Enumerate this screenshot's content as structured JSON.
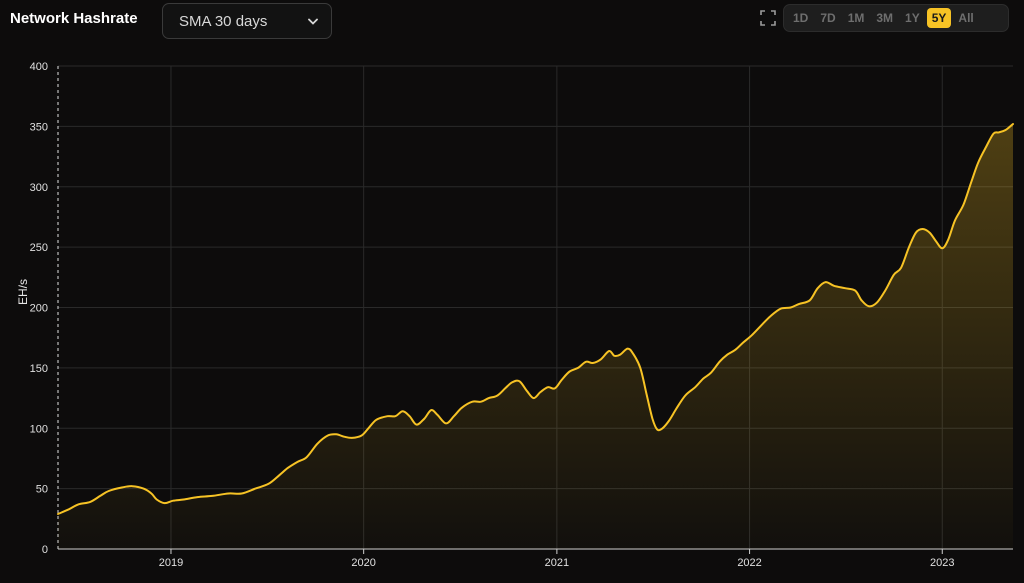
{
  "header": {
    "title": "Network Hashrate",
    "select_value": "SMA 30 days",
    "ranges": [
      "1D",
      "7D",
      "1M",
      "3M",
      "1Y",
      "5Y",
      "All"
    ],
    "active_range": "5Y"
  },
  "colors": {
    "line": "#f7c325",
    "active": "#f7c325",
    "background": "#0d0c0c",
    "grid": "#2a2a2a"
  },
  "icons": {
    "fullscreen": "fullscreen-icon",
    "dropdown": "chevron-down-icon"
  },
  "chart_data": {
    "type": "area",
    "title": "",
    "xlabel": "",
    "ylabel": "EH/s",
    "ylim": [
      0,
      400
    ],
    "yticks": [
      0,
      50,
      100,
      150,
      200,
      250,
      300,
      350,
      400
    ],
    "xlim": [
      "2018-06-01",
      "2023-05-15"
    ],
    "xticks": [
      {
        "date": "2019-01-01",
        "label": "2019"
      },
      {
        "date": "2020-01-01",
        "label": "2020"
      },
      {
        "date": "2021-01-01",
        "label": "2021"
      },
      {
        "date": "2022-01-01",
        "label": "2022"
      },
      {
        "date": "2023-01-01",
        "label": "2023"
      }
    ],
    "grid": true,
    "series": [
      {
        "points": [
          [
            "2018-06-01",
            29
          ],
          [
            "2018-06-22",
            33
          ],
          [
            "2018-07-10",
            37
          ],
          [
            "2018-08-01",
            39
          ],
          [
            "2018-08-20",
            44
          ],
          [
            "2018-09-05",
            48
          ],
          [
            "2018-10-01",
            51
          ],
          [
            "2018-10-20",
            52
          ],
          [
            "2018-11-10",
            50
          ],
          [
            "2018-11-25",
            46
          ],
          [
            "2018-12-05",
            41
          ],
          [
            "2018-12-20",
            38
          ],
          [
            "2019-01-05",
            40
          ],
          [
            "2019-01-25",
            41
          ],
          [
            "2019-02-20",
            43
          ],
          [
            "2019-03-20",
            44
          ],
          [
            "2019-04-20",
            46
          ],
          [
            "2019-05-15",
            46
          ],
          [
            "2019-06-10",
            50
          ],
          [
            "2019-07-05",
            54
          ],
          [
            "2019-07-25",
            61
          ],
          [
            "2019-08-10",
            67
          ],
          [
            "2019-08-28",
            72
          ],
          [
            "2019-09-15",
            76
          ],
          [
            "2019-10-05",
            87
          ],
          [
            "2019-10-25",
            94
          ],
          [
            "2019-11-10",
            95
          ],
          [
            "2019-11-25",
            93
          ],
          [
            "2019-12-10",
            92
          ],
          [
            "2019-12-28",
            94
          ],
          [
            "2020-01-10",
            100
          ],
          [
            "2020-01-25",
            107
          ],
          [
            "2020-02-15",
            110
          ],
          [
            "2020-03-01",
            110
          ],
          [
            "2020-03-15",
            114
          ],
          [
            "2020-03-28",
            110
          ],
          [
            "2020-04-10",
            103
          ],
          [
            "2020-04-25",
            108
          ],
          [
            "2020-05-08",
            115
          ],
          [
            "2020-05-20",
            111
          ],
          [
            "2020-06-05",
            104
          ],
          [
            "2020-06-20",
            110
          ],
          [
            "2020-07-05",
            117
          ],
          [
            "2020-07-25",
            122
          ],
          [
            "2020-08-10",
            122
          ],
          [
            "2020-08-25",
            125
          ],
          [
            "2020-09-10",
            127
          ],
          [
            "2020-09-25",
            133
          ],
          [
            "2020-10-08",
            138
          ],
          [
            "2020-10-22",
            139
          ],
          [
            "2020-11-05",
            131
          ],
          [
            "2020-11-18",
            125
          ],
          [
            "2020-12-01",
            130
          ],
          [
            "2020-12-15",
            134
          ],
          [
            "2020-12-28",
            133
          ],
          [
            "2021-01-10",
            140
          ],
          [
            "2021-01-25",
            147
          ],
          [
            "2021-02-10",
            150
          ],
          [
            "2021-02-25",
            155
          ],
          [
            "2021-03-10",
            154
          ],
          [
            "2021-03-25",
            157
          ],
          [
            "2021-04-10",
            164
          ],
          [
            "2021-04-20",
            160
          ],
          [
            "2021-05-01",
            161
          ],
          [
            "2021-05-15",
            166
          ],
          [
            "2021-05-25",
            162
          ],
          [
            "2021-06-08",
            150
          ],
          [
            "2021-06-20",
            128
          ],
          [
            "2021-07-01",
            108
          ],
          [
            "2021-07-10",
            99
          ],
          [
            "2021-07-20",
            100
          ],
          [
            "2021-08-01",
            106
          ],
          [
            "2021-08-15",
            116
          ],
          [
            "2021-09-01",
            127
          ],
          [
            "2021-09-20",
            134
          ],
          [
            "2021-10-05",
            141
          ],
          [
            "2021-10-20",
            146
          ],
          [
            "2021-11-05",
            155
          ],
          [
            "2021-11-20",
            161
          ],
          [
            "2021-12-05",
            165
          ],
          [
            "2021-12-20",
            171
          ],
          [
            "2022-01-05",
            177
          ],
          [
            "2022-01-25",
            186
          ],
          [
            "2022-02-10",
            193
          ],
          [
            "2022-03-01",
            199
          ],
          [
            "2022-03-20",
            200
          ],
          [
            "2022-04-05",
            203
          ],
          [
            "2022-04-25",
            206
          ],
          [
            "2022-05-10",
            216
          ],
          [
            "2022-05-25",
            221
          ],
          [
            "2022-06-10",
            218
          ],
          [
            "2022-07-01",
            216
          ],
          [
            "2022-07-20",
            214
          ],
          [
            "2022-08-01",
            206
          ],
          [
            "2022-08-15",
            201
          ],
          [
            "2022-08-30",
            204
          ],
          [
            "2022-09-15",
            214
          ],
          [
            "2022-10-01",
            227
          ],
          [
            "2022-10-15",
            233
          ],
          [
            "2022-10-30",
            250
          ],
          [
            "2022-11-12",
            262
          ],
          [
            "2022-11-25",
            265
          ],
          [
            "2022-12-08",
            262
          ],
          [
            "2022-12-20",
            255
          ],
          [
            "2023-01-01",
            249
          ],
          [
            "2023-01-12",
            256
          ],
          [
            "2023-01-25",
            272
          ],
          [
            "2023-02-10",
            285
          ],
          [
            "2023-02-25",
            304
          ],
          [
            "2023-03-10",
            320
          ],
          [
            "2023-03-25",
            333
          ],
          [
            "2023-04-08",
            344
          ],
          [
            "2023-04-18",
            345
          ],
          [
            "2023-05-01",
            347
          ],
          [
            "2023-05-15",
            352
          ]
        ]
      }
    ]
  }
}
